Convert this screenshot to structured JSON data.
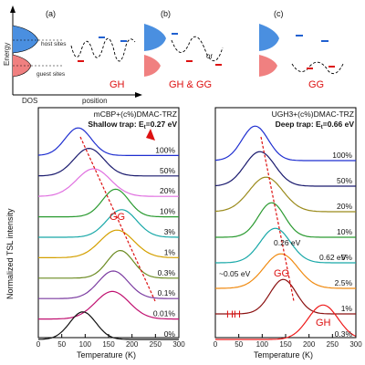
{
  "top": {
    "panel_a": {
      "letter": "(a)",
      "y_axis": "Energy",
      "x_axis_left": "DOS",
      "x_axis_right": "position",
      "host_label": "host sites",
      "guest_label": "guest sites",
      "case": "GH"
    },
    "panel_b": {
      "letter": "(b)",
      "or_label": "or",
      "case": "GH & GG"
    },
    "panel_c": {
      "letter": "(c)",
      "case": "GG"
    }
  },
  "chart_data": [
    {
      "type": "line",
      "title": "mCBP+(c%)DMAC-TRZ",
      "subtitle_prefix": "Shallow trap: E",
      "subtitle_sub": "t",
      "subtitle_suffix": "=0.27 eV",
      "xlabel": "Temperature (K)",
      "ylabel": "Normalized TSL intensity",
      "xlim": [
        0,
        300
      ],
      "xticks": [
        0,
        50,
        100,
        150,
        200,
        250,
        300
      ],
      "annotation": "GG",
      "series": [
        {
          "name": "100%",
          "color": "#1f2fd0",
          "peak_K": 85
        },
        {
          "name": "50%",
          "color": "#1a1a6e",
          "peak_K": 108
        },
        {
          "name": "20%",
          "color": "#e070e0",
          "peak_K": 118
        },
        {
          "name": "10%",
          "color": "#2a9a30",
          "peak_K": 165
        },
        {
          "name": "3%",
          "color": "#18a8a8",
          "peak_K": 178
        },
        {
          "name": "1%",
          "color": "#d4a000",
          "peak_K": 168
        },
        {
          "name": "0.3%",
          "color": "#6a8a20",
          "peak_K": 175
        },
        {
          "name": "0.1%",
          "color": "#7a3aa0",
          "peak_K": 160
        },
        {
          "name": "0.01%",
          "color": "#c01070",
          "peak_K": 158
        },
        {
          "name": "0%",
          "color": "#111111",
          "peak_K": 95
        }
      ]
    },
    {
      "type": "line",
      "title": "UGH3+(c%)DMAC-TRZ",
      "subtitle_prefix": "Deep trap: E",
      "subtitle_sub": "t",
      "subtitle_suffix": "=0.66 eV",
      "xlabel": "Temperature (K)",
      "xlim": [
        0,
        300
      ],
      "xticks": [
        0,
        50,
        100,
        150,
        200,
        250,
        300
      ],
      "annotations": {
        "gg": "GG",
        "hh": "HH",
        "gh": "GH",
        "e1": "0.26 eV",
        "e2": "0.62 eV",
        "e3": "~0.05 eV"
      },
      "series": [
        {
          "name": "100%",
          "color": "#1f2fd0",
          "peak_K": 85
        },
        {
          "name": "50%",
          "color": "#1a1a6e",
          "peak_K": 95
        },
        {
          "name": "20%",
          "color": "#9a8a1a",
          "peak_K": 108
        },
        {
          "name": "10%",
          "color": "#2a9a30",
          "peak_K": 120
        },
        {
          "name": "5%",
          "color": "#18a8a8",
          "peak_K": 128
        },
        {
          "name": "2.5%",
          "color": "#f08a10",
          "peak_K": 140
        },
        {
          "name": "1%",
          "color": "#8a1010",
          "peak_K": 145
        },
        {
          "name": "0.3%",
          "color": "#ee1a1a",
          "peak_K": 230
        }
      ]
    }
  ]
}
